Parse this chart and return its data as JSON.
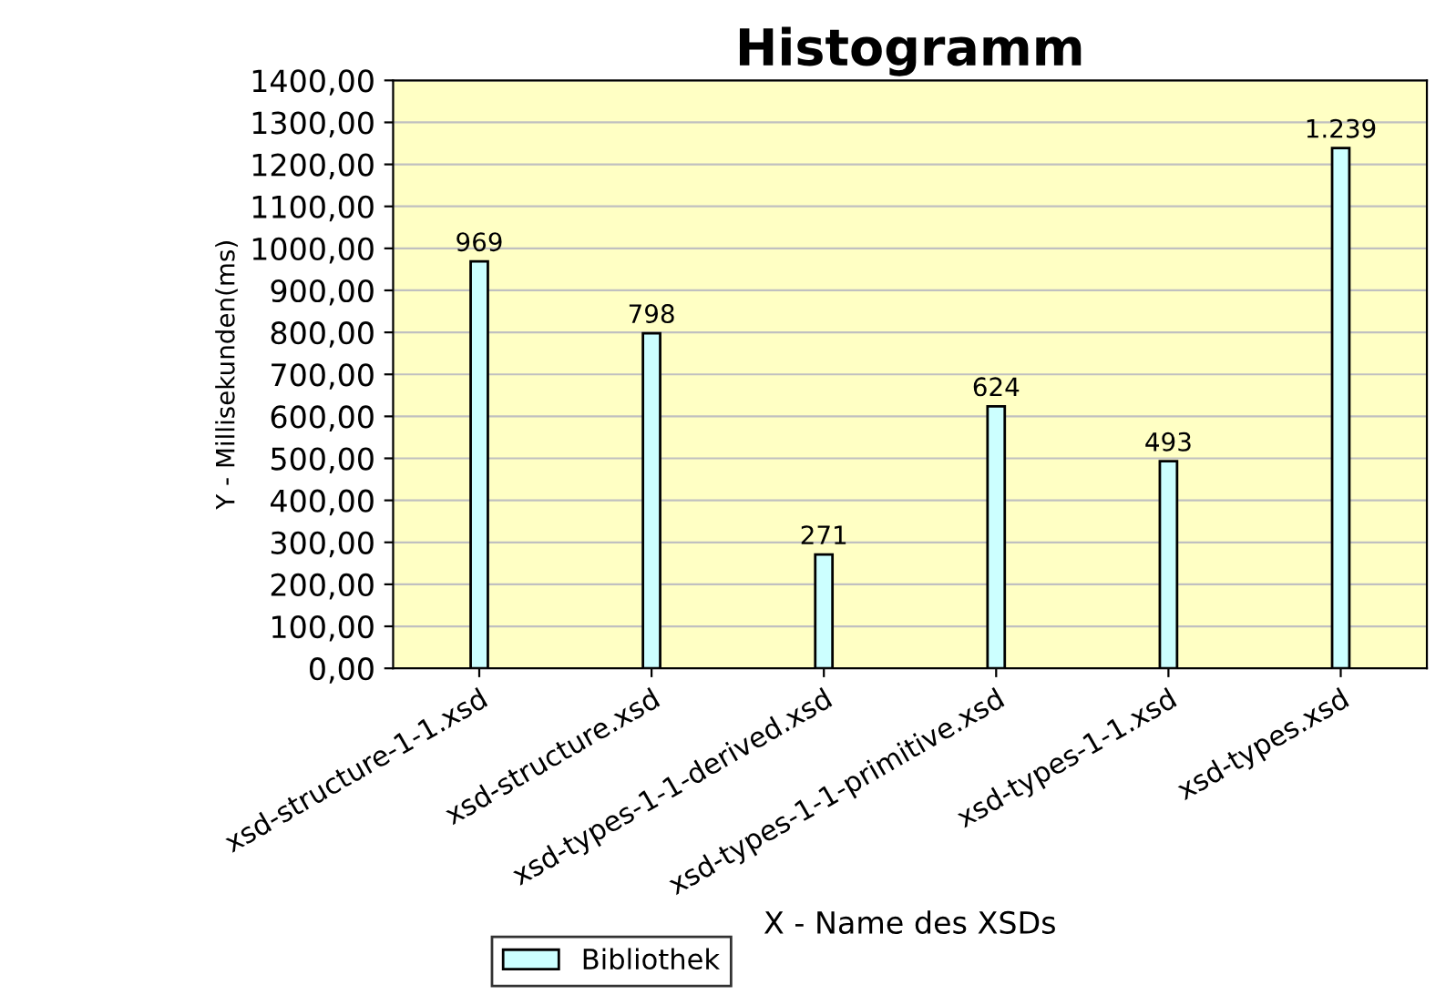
{
  "chart_data": {
    "type": "bar",
    "title": "Histogramm",
    "xlabel": "X - Name des XSDs",
    "ylabel": "Y - Millisekunden(ms)",
    "categories": [
      "xsd-structure-1-1.xsd",
      "xsd-structure.xsd",
      "xsd-types-1-1-derived.xsd",
      "xsd-types-1-1-primitive.xsd",
      "xsd-types-1-1.xsd",
      "xsd-types.xsd"
    ],
    "series": [
      {
        "name": "Bibliothek",
        "color": "#ccffff",
        "values": [
          969,
          798,
          271,
          624,
          493,
          1239
        ],
        "value_labels": [
          "969",
          "798",
          "271",
          "624",
          "493",
          "1.239"
        ]
      }
    ],
    "ylim": [
      0,
      1400
    ],
    "yticks": [
      {
        "value": 0,
        "label": "0,00"
      },
      {
        "value": 100,
        "label": "100,00"
      },
      {
        "value": 200,
        "label": "200,00"
      },
      {
        "value": 300,
        "label": "300,00"
      },
      {
        "value": 400,
        "label": "400,00"
      },
      {
        "value": 500,
        "label": "500,00"
      },
      {
        "value": 600,
        "label": "600,00"
      },
      {
        "value": 700,
        "label": "700,00"
      },
      {
        "value": 800,
        "label": "800,00"
      },
      {
        "value": 900,
        "label": "900,00"
      },
      {
        "value": 1000,
        "label": "1000,00"
      },
      {
        "value": 1100,
        "label": "1100,00"
      },
      {
        "value": 1200,
        "label": "1200,00"
      },
      {
        "value": 1300,
        "label": "1300,00"
      },
      {
        "value": 1400,
        "label": "1400,00"
      }
    ],
    "grid": "y",
    "legend": "bottom"
  }
}
